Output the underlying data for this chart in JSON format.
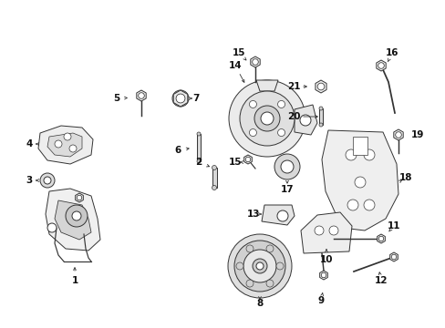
{
  "background": "#ffffff",
  "fig_w": 4.89,
  "fig_h": 3.6,
  "dpi": 100,
  "ec": "#333333",
  "lw": 0.7,
  "label_fs": 7.5
}
